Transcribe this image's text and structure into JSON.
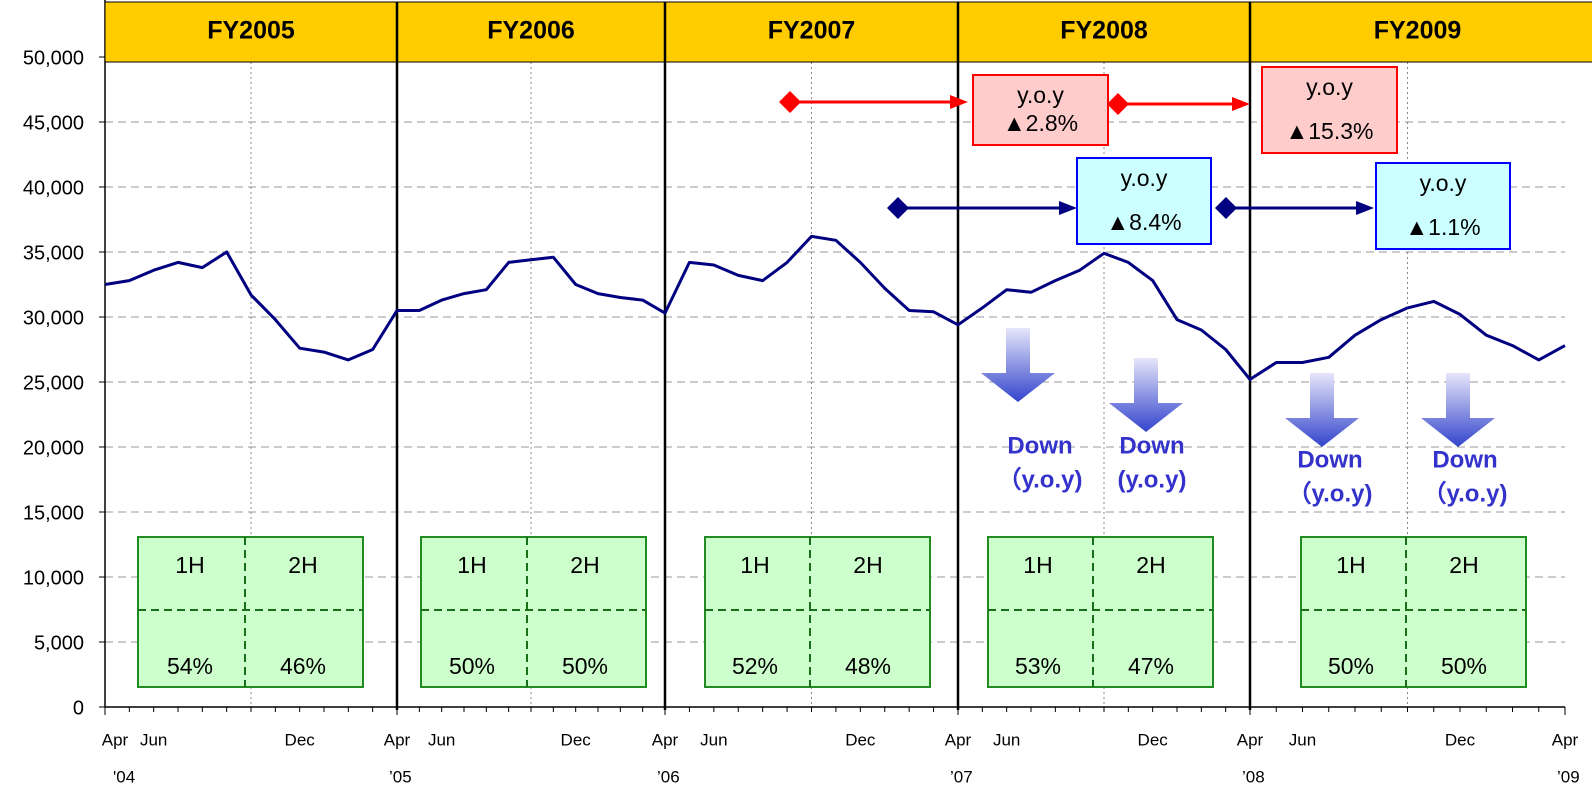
{
  "chart_data": {
    "type": "line",
    "ylim": [
      0,
      50000
    ],
    "yticks": [
      0,
      {
        "value": 5000,
        "label": "5,000"
      },
      {
        "value": 10000,
        "label": "10,000"
      },
      {
        "value": 15000,
        "label": "15,000"
      },
      {
        "value": 20000,
        "label": "20,000"
      },
      {
        "value": 25000,
        "label": "25,000"
      },
      {
        "value": 30000,
        "label": "30,000"
      },
      {
        "value": 35000,
        "label": "35,000"
      },
      {
        "value": 40000,
        "label": "40,000"
      },
      {
        "value": 45000,
        "label": "45,000"
      },
      {
        "value": 50000,
        "label": "50,000"
      }
    ],
    "grid": true,
    "color": "#000080",
    "categories": [
      "Apr",
      null,
      "Jun",
      null,
      null,
      null,
      null,
      null,
      "Dec",
      null,
      null,
      null,
      "Apr",
      null,
      "Jun",
      null,
      null,
      null,
      null,
      null,
      "Dec",
      null,
      null,
      null,
      "Apr",
      null,
      "Jun",
      null,
      null,
      null,
      null,
      null,
      "Dec",
      null,
      null,
      null,
      "Apr",
      null,
      "Jun",
      null,
      null,
      null,
      null,
      null,
      "Dec",
      null,
      null,
      null,
      "Apr",
      null,
      "Jun",
      null,
      null,
      null,
      null,
      null,
      "Dec",
      null,
      null,
      null,
      "Apr"
    ],
    "year_labels": [
      "'04",
      null,
      null,
      null,
      null,
      null,
      null,
      null,
      null,
      null,
      null,
      null,
      "’05",
      null,
      null,
      null,
      null,
      null,
      null,
      null,
      null,
      null,
      null,
      null,
      "’06",
      null,
      null,
      null,
      null,
      null,
      null,
      null,
      null,
      null,
      null,
      null,
      "’07",
      null,
      null,
      null,
      null,
      null,
      null,
      null,
      null,
      null,
      null,
      null,
      "’08",
      null,
      null,
      null,
      null,
      null,
      null,
      null,
      null,
      null,
      null,
      null,
      "’09"
    ],
    "values": [
      32500,
      32800,
      33600,
      34200,
      33800,
      35000,
      31700,
      29800,
      27600,
      27300,
      26700,
      27500,
      30500,
      30500,
      31300,
      31800,
      32100,
      34200,
      34400,
      34600,
      32500,
      31800,
      31500,
      31300,
      30300,
      34200,
      34000,
      33200,
      32800,
      34200,
      36200,
      35900,
      34200,
      32200,
      30500,
      30400,
      29400,
      30700,
      32100,
      31900,
      32800,
      33600,
      34900,
      34200,
      32800,
      29800,
      29000,
      27500,
      25200,
      26500,
      26500,
      26900,
      28600,
      29800,
      30700,
      31200,
      30200,
      28600,
      27800,
      26700,
      27800
    ],
    "fiscal_years": [
      {
        "label": "FY2005",
        "halves": [
          "1H",
          "2H"
        ],
        "values": [
          54,
          46
        ],
        "value_labels": [
          "54%",
          "46%"
        ]
      },
      {
        "label": "FY2006",
        "halves": [
          "1H",
          "2H"
        ],
        "values": [
          50,
          50
        ],
        "value_labels": [
          "50%",
          "50%"
        ]
      },
      {
        "label": "FY2007",
        "halves": [
          "1H",
          "2H"
        ],
        "values": [
          52,
          48
        ],
        "value_labels": [
          "52%",
          "48%"
        ]
      },
      {
        "label": "FY2008",
        "halves": [
          "1H",
          "2H"
        ],
        "values": [
          53,
          47
        ],
        "value_labels": [
          "53%",
          "47%"
        ]
      },
      {
        "label": "FY2009",
        "halves": [
          "1H",
          "2H"
        ],
        "values": [
          50,
          50
        ],
        "value_labels": [
          "50%",
          "50%"
        ]
      }
    ],
    "yoy_boxes": [
      {
        "title": "y.o.y",
        "change": "▲2.8%"
      },
      {
        "title": "y.o.y",
        "change": "▲15.3%"
      },
      {
        "title": "y.o.y",
        "change": "▲8.4%"
      },
      {
        "title": "y.o.y",
        "change": "▲1.1%"
      }
    ],
    "down_notes": [
      {
        "text": "Down",
        "sub": "（y.o.y)"
      },
      {
        "text": "Down",
        "sub": "(y.o.y)"
      },
      {
        "text": "Down",
        "sub": "（y.o.y)"
      },
      {
        "text": "Down",
        "sub": "（y.o.y)"
      }
    ]
  }
}
